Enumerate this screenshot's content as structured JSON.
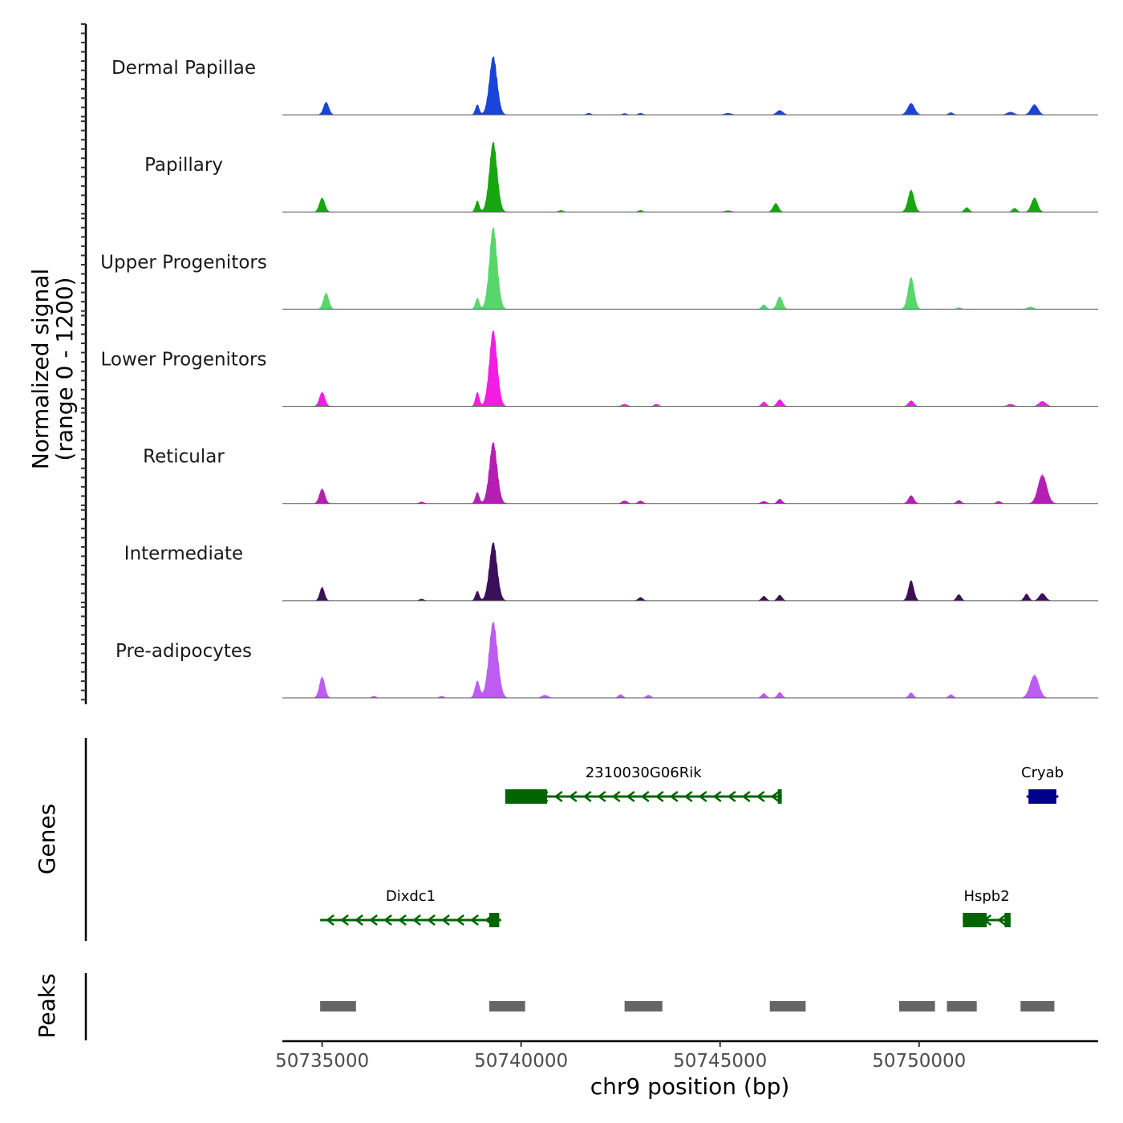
{
  "chart_data": {
    "type": "area",
    "chromosome": "chr9",
    "xlabel": "chr9 position (bp)",
    "ylabel_line1": "Normalized signal",
    "ylabel_line2": "(range 0 - 1200)",
    "signal_range": [
      0,
      1200
    ],
    "xlim": [
      50734000,
      50754500
    ],
    "x_ticks": [
      {
        "value": 50735000,
        "label": "50735000"
      },
      {
        "value": 50740000,
        "label": "50740000"
      },
      {
        "value": 50745000,
        "label": "50745000"
      },
      {
        "value": 50750000,
        "label": "50750000"
      }
    ],
    "series": [
      {
        "name": "Dermal Papillae",
        "color": "#1a44d8",
        "peaks": [
          [
            50735100,
            220,
            70
          ],
          [
            50738900,
            180,
            50
          ],
          [
            50739300,
            1000,
            100
          ],
          [
            50741700,
            30,
            60
          ],
          [
            50742600,
            25,
            60
          ],
          [
            50743000,
            30,
            60
          ],
          [
            50745200,
            30,
            90
          ],
          [
            50746500,
            80,
            80
          ],
          [
            50749800,
            200,
            90
          ],
          [
            50750800,
            40,
            60
          ],
          [
            50752300,
            50,
            90
          ],
          [
            50752900,
            180,
            90
          ]
        ]
      },
      {
        "name": "Papillary",
        "color": "#17a60f",
        "peaks": [
          [
            50735000,
            250,
            70
          ],
          [
            50738900,
            200,
            50
          ],
          [
            50739300,
            1200,
            100
          ],
          [
            50741000,
            30,
            60
          ],
          [
            50743000,
            30,
            60
          ],
          [
            50745200,
            25,
            90
          ],
          [
            50746400,
            150,
            70
          ],
          [
            50749800,
            380,
            80
          ],
          [
            50751200,
            80,
            60
          ],
          [
            50752400,
            70,
            60
          ],
          [
            50752900,
            250,
            80
          ]
        ]
      },
      {
        "name": "Upper Progenitors",
        "color": "#58d66b",
        "peaks": [
          [
            50735100,
            280,
            70
          ],
          [
            50738900,
            200,
            50
          ],
          [
            50739300,
            1400,
            100
          ],
          [
            50746100,
            80,
            60
          ],
          [
            50746500,
            220,
            70
          ],
          [
            50749800,
            550,
            80
          ],
          [
            50751000,
            30,
            60
          ],
          [
            50752800,
            40,
            80
          ]
        ]
      },
      {
        "name": "Lower Progenitors",
        "color": "#f21de3",
        "peaks": [
          [
            50735000,
            250,
            70
          ],
          [
            50738900,
            250,
            50
          ],
          [
            50739300,
            1300,
            100
          ],
          [
            50742600,
            40,
            70
          ],
          [
            50743400,
            40,
            60
          ],
          [
            50746100,
            80,
            60
          ],
          [
            50746500,
            120,
            70
          ],
          [
            50749800,
            100,
            70
          ],
          [
            50752300,
            40,
            80
          ],
          [
            50753100,
            90,
            90
          ]
        ]
      },
      {
        "name": "Reticular",
        "color": "#b31fb3",
        "peaks": [
          [
            50735000,
            260,
            70
          ],
          [
            50738900,
            200,
            50
          ],
          [
            50739300,
            1050,
            100
          ],
          [
            50737500,
            30,
            60
          ],
          [
            50742600,
            50,
            70
          ],
          [
            50743000,
            50,
            60
          ],
          [
            50746100,
            40,
            70
          ],
          [
            50746500,
            80,
            60
          ],
          [
            50749800,
            140,
            70
          ],
          [
            50751000,
            60,
            60
          ],
          [
            50752000,
            40,
            60
          ],
          [
            50753100,
            500,
            110
          ]
        ]
      },
      {
        "name": "Intermediate",
        "color": "#3b1059",
        "peaks": [
          [
            50735000,
            240,
            60
          ],
          [
            50738900,
            170,
            50
          ],
          [
            50739300,
            1000,
            100
          ],
          [
            50737500,
            30,
            60
          ],
          [
            50743000,
            60,
            60
          ],
          [
            50746100,
            80,
            60
          ],
          [
            50746500,
            100,
            60
          ],
          [
            50749800,
            350,
            70
          ],
          [
            50751000,
            110,
            60
          ],
          [
            50752700,
            120,
            60
          ],
          [
            50753100,
            130,
            80
          ]
        ]
      },
      {
        "name": "Pre-adipocytes",
        "color": "#bc5cf0",
        "peaks": [
          [
            50735000,
            370,
            70
          ],
          [
            50738900,
            300,
            60
          ],
          [
            50739300,
            1300,
            110
          ],
          [
            50736300,
            30,
            60
          ],
          [
            50738000,
            30,
            60
          ],
          [
            50740600,
            50,
            80
          ],
          [
            50742500,
            60,
            60
          ],
          [
            50743200,
            50,
            60
          ],
          [
            50746100,
            80,
            60
          ],
          [
            50746500,
            100,
            60
          ],
          [
            50749800,
            90,
            60
          ],
          [
            50750800,
            60,
            60
          ],
          [
            50752900,
            400,
            110
          ]
        ]
      }
    ],
    "genes": [
      {
        "name": "2310030G06Rik",
        "start": 50739600,
        "end": 50746550,
        "strand": "-",
        "color": "#006400",
        "row": 1,
        "exons": [
          [
            50739600,
            50740650
          ],
          [
            50746450,
            50746550
          ]
        ]
      },
      {
        "name": "Cryab",
        "start": 50752700,
        "end": 50753500,
        "strand": "+",
        "color": "#00008b",
        "row": 1,
        "exons": [
          [
            50752750,
            50753450
          ]
        ]
      },
      {
        "name": "Dixdc1",
        "start": 50734950,
        "end": 50739500,
        "strand": "-",
        "color": "#006400",
        "row": 2,
        "exons": [
          [
            50739200,
            50739450
          ]
        ]
      },
      {
        "name": "Hspb2",
        "start": 50751100,
        "end": 50752300,
        "strand": "-",
        "color": "#006400",
        "row": 2,
        "exons": [
          [
            50751100,
            50751700
          ],
          [
            50752150,
            50752300
          ]
        ]
      }
    ],
    "peaks_track_label": "Peaks",
    "genes_track_label": "Genes",
    "peak_regions": [
      [
        50734950,
        50735850
      ],
      [
        50739200,
        50740100
      ],
      [
        50742600,
        50743550
      ],
      [
        50746250,
        50747150
      ],
      [
        50749500,
        50750400
      ],
      [
        50750700,
        50751450
      ],
      [
        50752550,
        50753400
      ]
    ],
    "peak_color": "#666666"
  }
}
